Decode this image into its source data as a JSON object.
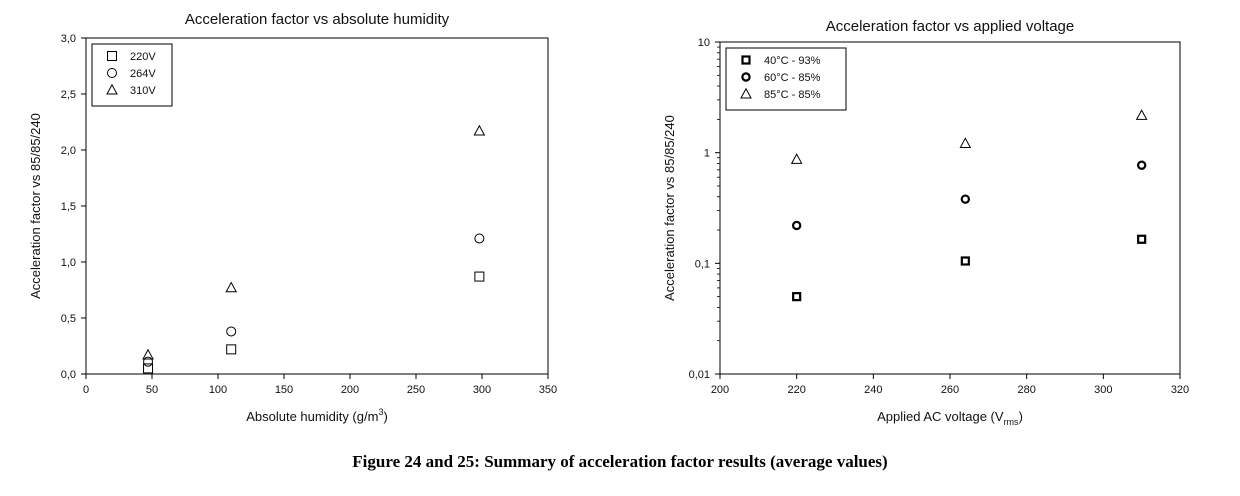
{
  "caption": "Figure 24 and 25: Summary of acceleration factor results (average values)",
  "chart_data": [
    {
      "type": "scatter",
      "title": "Acceleration factor vs absolute humidity",
      "xlabel": "Absolute humidity (g/m",
      "xlabel_sup": "3",
      "xlabel_end": ")",
      "ylabel": "Acceleration factor vs 85/85/240",
      "xlim": [
        0,
        350
      ],
      "ylim": [
        0,
        3.0
      ],
      "xscale": "linear",
      "yscale": "linear",
      "x_ticks": [
        0,
        50,
        100,
        150,
        200,
        250,
        300,
        350
      ],
      "x_tick_labels": [
        "0",
        "50",
        "100",
        "150",
        "200",
        "250",
        "300",
        "350"
      ],
      "y_ticks": [
        0,
        0.5,
        1.0,
        1.5,
        2.0,
        2.5,
        3.0
      ],
      "y_tick_labels": [
        "0,0",
        "0,5",
        "1,0",
        "1,5",
        "2,0",
        "2,5",
        "3,0"
      ],
      "grid": false,
      "legend_position": "top-left",
      "series": [
        {
          "name": "220V",
          "marker": "square",
          "points": [
            [
              47,
              0.05
            ],
            [
              110,
              0.22
            ],
            [
              298,
              0.87
            ]
          ]
        },
        {
          "name": "264V",
          "marker": "circle",
          "points": [
            [
              47,
              0.11
            ],
            [
              110,
              0.38
            ],
            [
              298,
              1.21
            ]
          ]
        },
        {
          "name": "310V",
          "marker": "triangle",
          "points": [
            [
              47,
              0.17
            ],
            [
              110,
              0.77
            ],
            [
              298,
              2.17
            ]
          ]
        }
      ]
    },
    {
      "type": "scatter",
      "title": "Acceleration factor vs applied voltage",
      "xlabel": "Applied AC voltage (V",
      "xlabel_sub": "rms",
      "xlabel_end": ")",
      "ylabel": "Acceleration factor vs 85/85/240",
      "xlim": [
        200,
        320
      ],
      "ylim": [
        0.01,
        10
      ],
      "xscale": "linear",
      "yscale": "log",
      "x_ticks": [
        200,
        220,
        240,
        260,
        280,
        300,
        320
      ],
      "x_tick_labels": [
        "200",
        "220",
        "240",
        "260",
        "280",
        "300",
        "320"
      ],
      "y_ticks": [
        0.01,
        0.1,
        1,
        10
      ],
      "y_tick_labels": [
        "0,01",
        "0,1",
        "1",
        "10"
      ],
      "grid": false,
      "legend_position": "top-left",
      "series": [
        {
          "name": "40°C - 93%",
          "marker": "square-dot",
          "points": [
            [
              220,
              0.05
            ],
            [
              264,
              0.105
            ],
            [
              310,
              0.165
            ]
          ]
        },
        {
          "name": "60°C - 85%",
          "marker": "circle-dot",
          "points": [
            [
              220,
              0.22
            ],
            [
              264,
              0.38
            ],
            [
              310,
              0.77
            ]
          ]
        },
        {
          "name": "85°C - 85%",
          "marker": "triangle",
          "points": [
            [
              220,
              0.87
            ],
            [
              264,
              1.21
            ],
            [
              310,
              2.17
            ]
          ]
        }
      ]
    }
  ]
}
